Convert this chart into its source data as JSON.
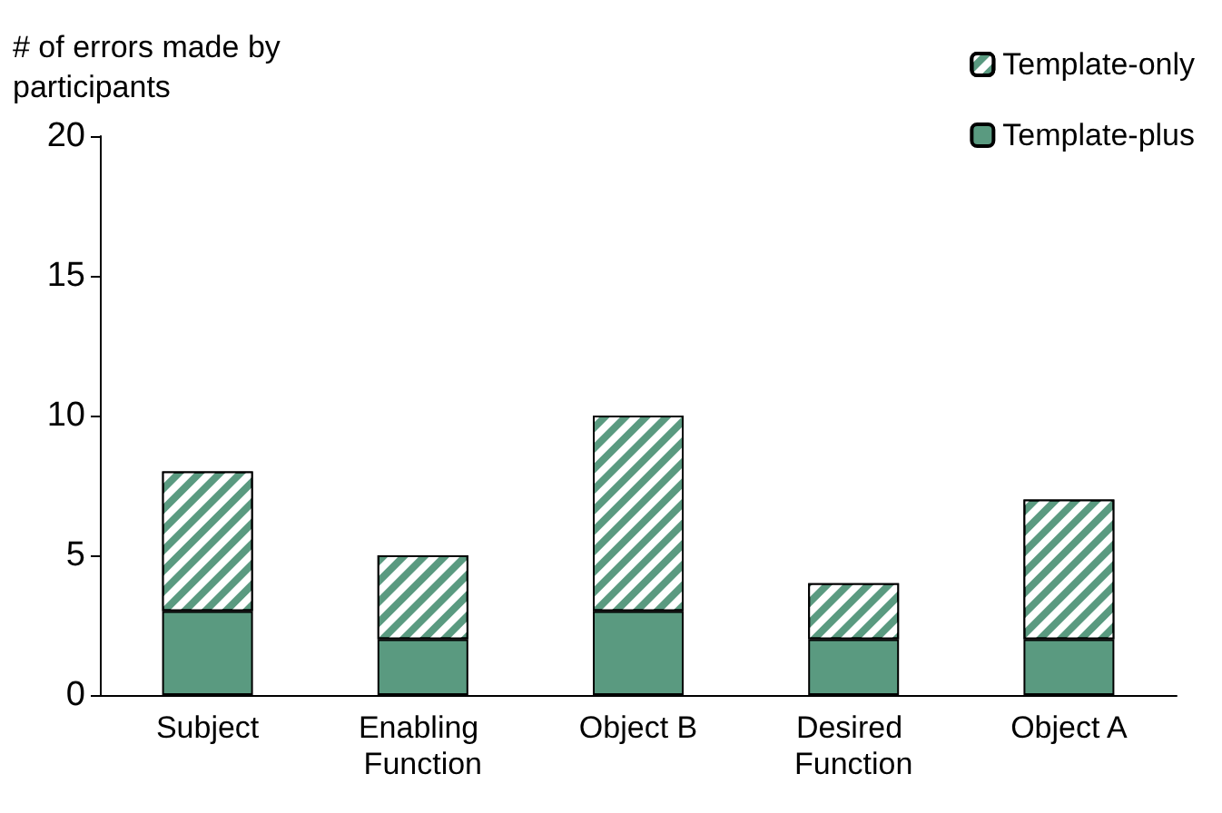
{
  "chart_data": {
    "type": "bar",
    "ylabel": "# of errors made by participants",
    "categories": [
      "Subject",
      "Enabling Function",
      "Object B",
      "Desired Function",
      "Object A"
    ],
    "series": [
      {
        "name": "Template-plus",
        "color": "#5a9a80",
        "values": [
          3,
          2,
          3,
          2,
          2
        ]
      },
      {
        "name": "Template-only",
        "color": "#5a9a80",
        "values": [
          5,
          3,
          7,
          2,
          5
        ]
      }
    ],
    "stacked": true,
    "ylim": [
      0,
      20
    ],
    "yticks": [
      0,
      5,
      10,
      15,
      20
    ],
    "legend": "top right"
  }
}
